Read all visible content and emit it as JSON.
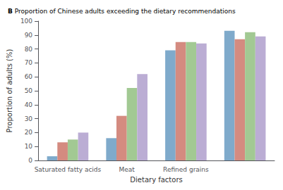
{
  "chart_data": {
    "type": "bar",
    "title": "B Proportion of Chinese adults exceeding the dietary recommendations",
    "xlabel": "Dietary factors",
    "ylabel": "Proportion of adults (%)",
    "categories": [
      "Saturated fatty acids",
      "Meat",
      "Refined grains",
      null
    ],
    "series": [
      {
        "color": "#7faacb",
        "values": [
          3,
          16,
          79,
          93
        ]
      },
      {
        "color": "#d48b80",
        "values": [
          13,
          32,
          85,
          87
        ]
      },
      {
        "color": "#a2c993",
        "values": [
          15,
          52,
          85,
          92
        ]
      },
      {
        "color": "#bbadd4",
        "values": [
          20,
          62,
          84,
          89
        ]
      }
    ],
    "ylim": [
      0,
      100
    ],
    "yticks": [
      0,
      10,
      20,
      30,
      40,
      50,
      60,
      70,
      80,
      90,
      100
    ],
    "grid": false
  }
}
